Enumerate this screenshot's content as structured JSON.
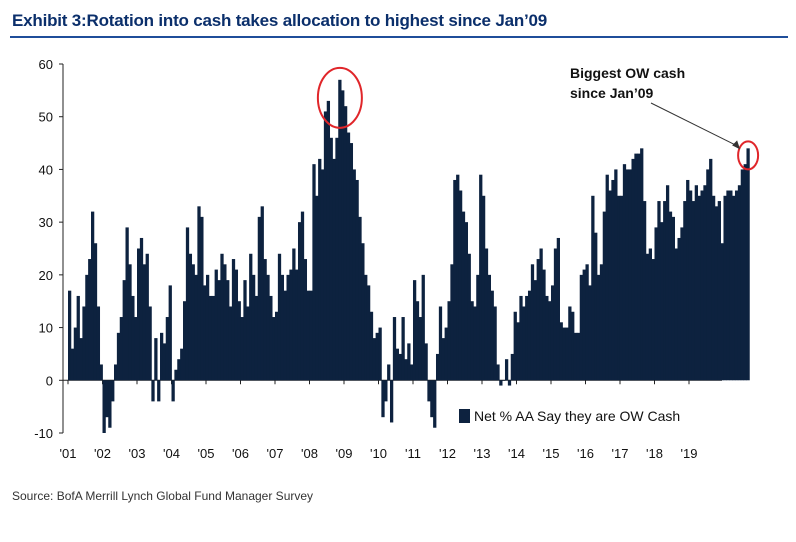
{
  "header": {
    "title": "Exhibit 3:Rotation into cash takes allocation to highest since Jan’09"
  },
  "footer": {
    "source": "Source:  BofA Merrill Lynch Global Fund Manager Survey"
  },
  "colors": {
    "bar": "#0d223f",
    "highlight": "#e0262a",
    "title": "#0b2f6b",
    "rule": "#1f4e9a"
  },
  "chart_data": {
    "type": "bar",
    "title": "",
    "xlabel": "",
    "ylabel": "",
    "ylim": [
      -10,
      60
    ],
    "yticks": [
      60,
      50,
      40,
      30,
      20,
      10,
      0,
      -10
    ],
    "xtick_labels": [
      "'01",
      "'02",
      "'03",
      "'04",
      "'05",
      "'06",
      "'07",
      "'08",
      "'09",
      "'10",
      "'11",
      "'12",
      "'13",
      "'14",
      "'15",
      "'16",
      "'17",
      "'18",
      "'19"
    ],
    "x_start": 2001.0,
    "x_step": 0.08333,
    "legend": {
      "label": "Net % AA Say they are OW Cash",
      "position": "bottom-right"
    },
    "annotation": {
      "text_lines": [
        "Biggest OW cash",
        "since Jan’09"
      ],
      "target": "latest"
    },
    "highlights": [
      "peak-2008",
      "latest"
    ],
    "series": [
      {
        "name": "Net % AA Say they are OW Cash",
        "values": [
          17,
          6,
          10,
          16,
          8,
          14,
          20,
          23,
          32,
          26,
          14,
          3,
          -10,
          -7,
          -9,
          -4,
          3,
          9,
          12,
          19,
          29,
          22,
          16,
          12,
          25,
          27,
          22,
          24,
          14,
          -4,
          8,
          -4,
          9,
          7,
          12,
          18,
          -4,
          2,
          4,
          6,
          15,
          29,
          24,
          22,
          20,
          33,
          31,
          18,
          20,
          16,
          16,
          21,
          19,
          24,
          22,
          19,
          14,
          23,
          21,
          15,
          12,
          19,
          14,
          24,
          20,
          16,
          31,
          33,
          23,
          20,
          16,
          12,
          13,
          24,
          20,
          17,
          20,
          21,
          25,
          21,
          30,
          32,
          23,
          17,
          17,
          41,
          35,
          42,
          40,
          51,
          53,
          46,
          42,
          46,
          57,
          55,
          52,
          47,
          45,
          40,
          38,
          31,
          26,
          20,
          18,
          13,
          8,
          9,
          10,
          -7,
          -4,
          3,
          -8,
          12,
          6,
          5,
          12,
          4,
          7,
          3,
          19,
          15,
          12,
          20,
          7,
          -4,
          -7,
          -9,
          5,
          14,
          8,
          10,
          15,
          22,
          38,
          39,
          36,
          32,
          30,
          24,
          15,
          14,
          20,
          39,
          35,
          25,
          20,
          17,
          14,
          3,
          -1,
          0,
          4,
          -1,
          5,
          13,
          11,
          16,
          14,
          16,
          17,
          22,
          19,
          23,
          25,
          21,
          16,
          15,
          18,
          25,
          27,
          11,
          10,
          10,
          14,
          13,
          9,
          9,
          20,
          21,
          22,
          18,
          35,
          28,
          20,
          22,
          32,
          39,
          36,
          38,
          40,
          35,
          35,
          41,
          40,
          40,
          42,
          43,
          43,
          44,
          34,
          24,
          25,
          23,
          29,
          34,
          30,
          34,
          37,
          32,
          31,
          25,
          27,
          29,
          34,
          38,
          36,
          34,
          37,
          35,
          36,
          37,
          40,
          42,
          35,
          33,
          34,
          26,
          35,
          36,
          36,
          35,
          36,
          37,
          40,
          41,
          44
        ]
      }
    ]
  }
}
